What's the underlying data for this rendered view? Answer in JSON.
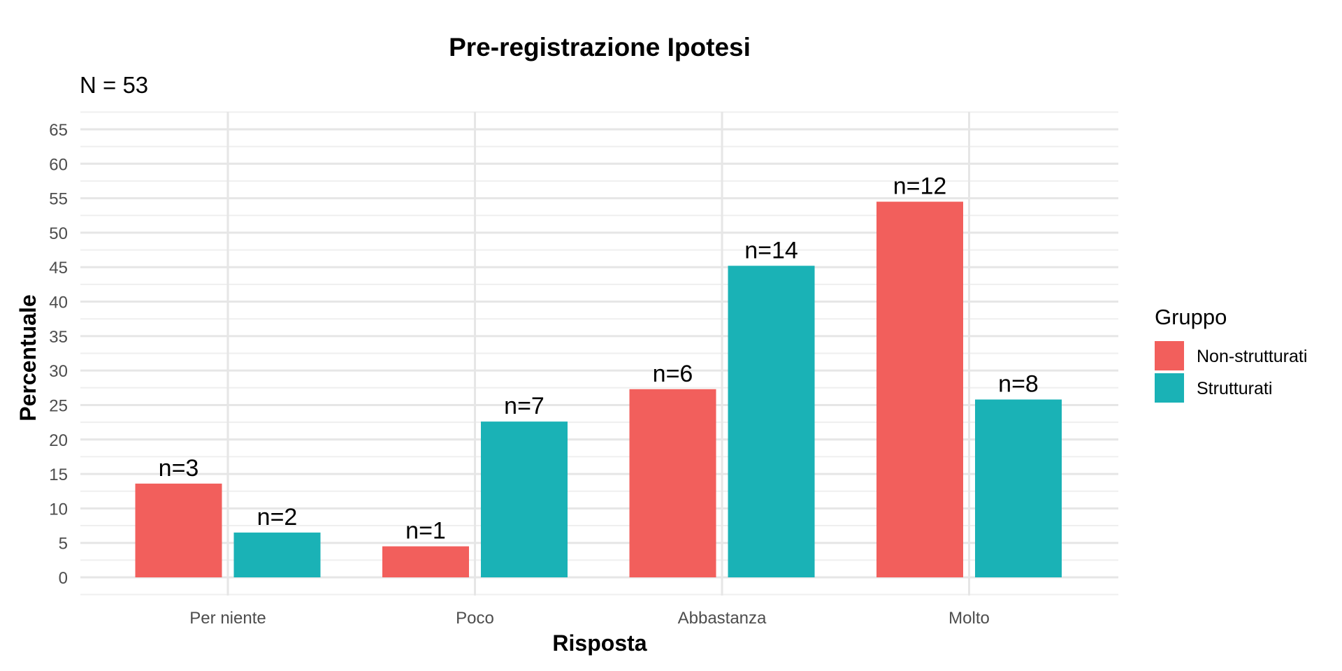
{
  "chart_data": {
    "type": "bar",
    "title": "Pre-registrazione Ipotesi",
    "subtitle": "N = 53",
    "xlabel": "Risposta",
    "ylabel": "Percentuale",
    "categories": [
      "Per niente",
      "Poco",
      "Abbastanza",
      "Molto"
    ],
    "ylim": [
      0,
      65
    ],
    "yticks": [
      "0",
      "5",
      "10",
      "15",
      "20",
      "25",
      "30",
      "35",
      "40",
      "45",
      "50",
      "55",
      "60",
      "65"
    ],
    "grid": true,
    "legend": {
      "title": "Gruppo",
      "position": "right"
    },
    "series": [
      {
        "name": "Non-strutturati",
        "color": "#F25F5C",
        "values": [
          13.6,
          4.5,
          27.3,
          54.5
        ],
        "labels": [
          "n=3",
          "n=1",
          "n=6",
          "n=12"
        ]
      },
      {
        "name": "Strutturati",
        "color": "#1AB2B6",
        "values": [
          6.5,
          22.6,
          45.2,
          25.8
        ],
        "labels": [
          "n=2",
          "n=7",
          "n=14",
          "n=8"
        ]
      }
    ]
  }
}
